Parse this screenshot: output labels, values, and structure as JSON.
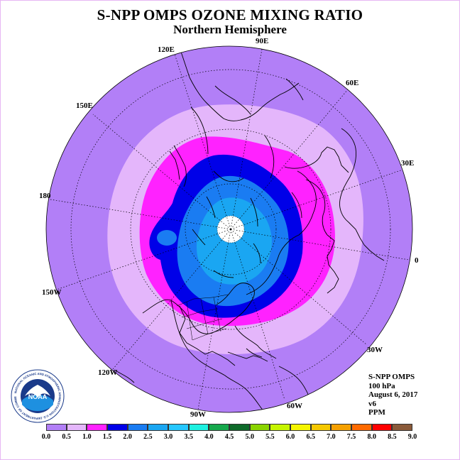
{
  "title": "S-NPP OMPS OZONE MIXING RATIO",
  "subtitle": "Northern Hemisphere",
  "longitude_labels": {
    "lon_90E": "90E",
    "lon_60E": "60E",
    "lon_120E": "120E",
    "lon_150E": "150E",
    "lon_30E": "30E",
    "lon_180": "180",
    "lon_0": "0",
    "lon_150W": "150W",
    "lon_30W": "30W",
    "lon_120W": "120W",
    "lon_60W": "60W",
    "lon_90W": "90W"
  },
  "info": {
    "instrument": "S-NPP OMPS",
    "level": "100 hPa",
    "date": "August 6, 2017",
    "version": "v6",
    "unit": "PPM"
  },
  "logo_text": {
    "name": "NOAA",
    "ring": "NATIONAL OCEANIC AND ATMOSPHERIC ADMINISTRATION U.S. DEPARTMENT OF COMMERCE"
  },
  "colorbar": {
    "colors": [
      "#b27ff7",
      "#e4b6fb",
      "#ff22ff",
      "#0000e8",
      "#1a7cf2",
      "#1aa6f2",
      "#26c7ff",
      "#1ef0e0",
      "#16a84c",
      "#0e6a2a",
      "#8ad400",
      "#c6f500",
      "#f5f500",
      "#f5c800",
      "#f5a000",
      "#ff6a00",
      "#ff0000",
      "#8a5a3a"
    ],
    "ticks": [
      "0.0",
      "0.5",
      "1.0",
      "1.5",
      "2.0",
      "2.5",
      "3.0",
      "3.5",
      "4.0",
      "4.5",
      "5.0",
      "5.5",
      "6.0",
      "6.5",
      "7.0",
      "7.5",
      "8.0",
      "8.5",
      "9.0"
    ]
  },
  "legend_colors": {
    "very_low": "#b27ff7",
    "low": "#e4b6fb",
    "mid": "#ff22ff",
    "dark_blue": "#0000e8",
    "blue": "#1a7cf2",
    "light_blue": "#1aa6f2",
    "no_data": "#ffffff"
  }
}
